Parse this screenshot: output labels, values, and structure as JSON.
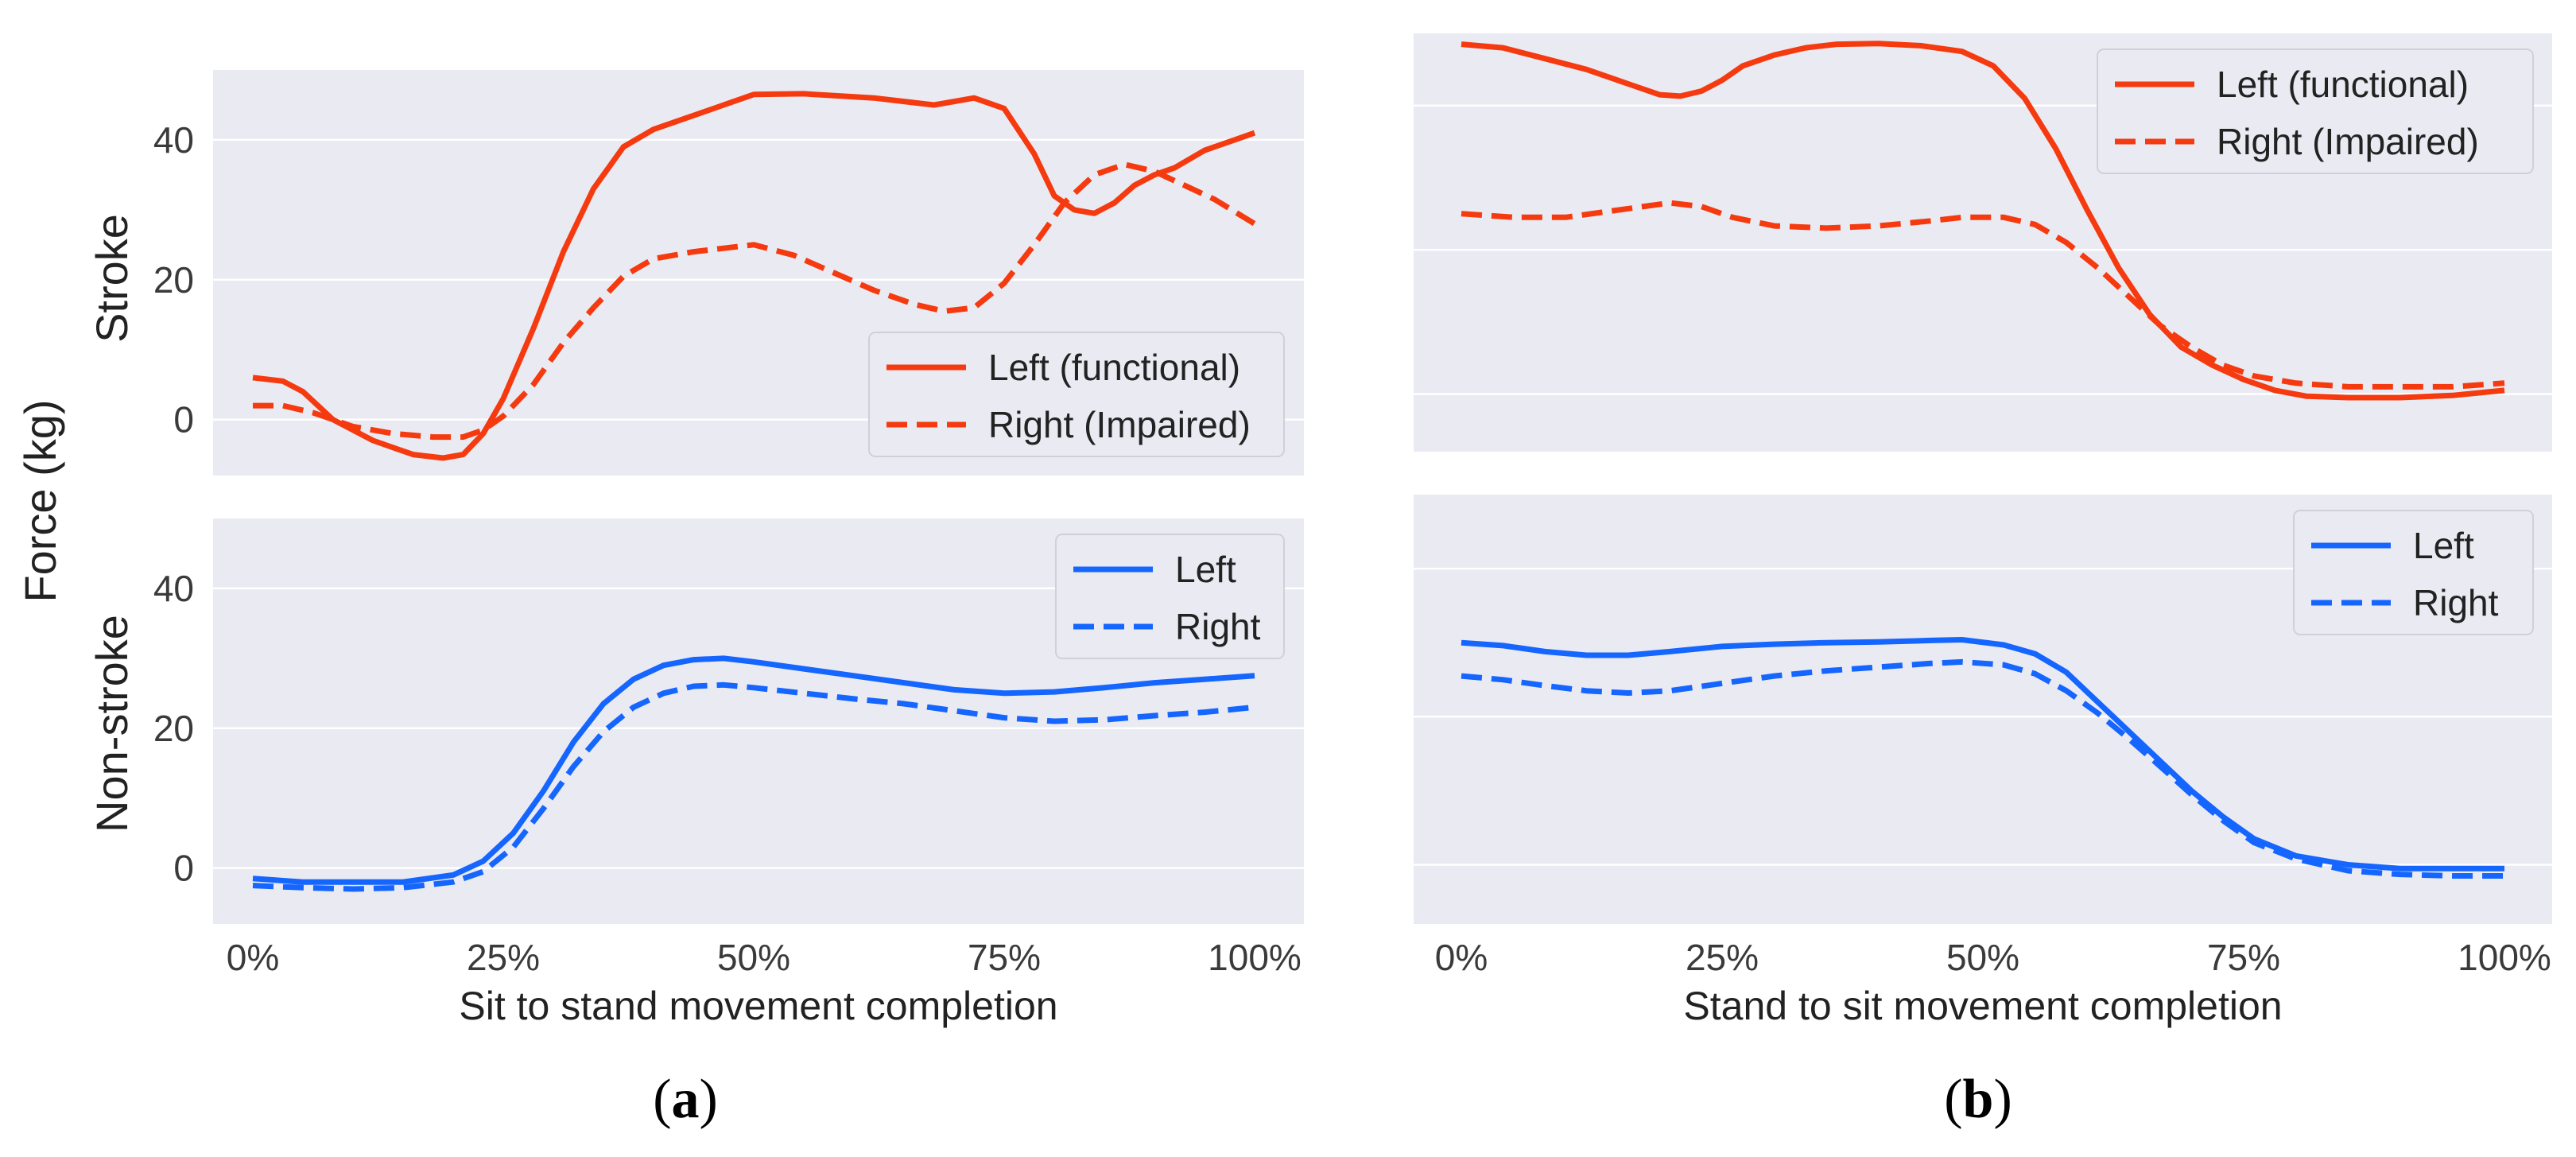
{
  "figure": {
    "ylabel": "Force (kg)",
    "row_labels": [
      "Stroke",
      "Non-stroke"
    ],
    "captions": [
      {
        "open": "(",
        "letter": "a",
        "close": ")"
      },
      {
        "open": "(",
        "letter": "b",
        "close": ")"
      }
    ]
  },
  "colors": {
    "stroke": "#f53a10",
    "non_stroke": "#1565ff",
    "panel_bg": "#eaeaf2",
    "grid": "#ffffff"
  },
  "chart_data": [
    {
      "type": "line",
      "panel": "a-top",
      "xlabel": "",
      "ylabel": "Stroke",
      "xlim": [
        0,
        100
      ],
      "ylim": [
        -8,
        50
      ],
      "yticks": [
        0,
        20,
        40
      ],
      "ytick_labels": [
        "0",
        "20",
        "40"
      ],
      "grid": true,
      "legend_position": "lower-right",
      "series": [
        {
          "name": "Left (functional)",
          "style": "solid",
          "color": "#f53a10",
          "x": [
            0,
            3,
            5,
            8,
            12,
            16,
            19,
            21,
            23,
            25,
            28,
            31,
            34,
            37,
            40,
            44,
            47,
            50,
            55,
            62,
            68,
            72,
            75,
            78,
            80,
            82,
            84,
            86,
            88,
            90,
            92,
            95,
            98,
            100
          ],
          "y": [
            6,
            5.5,
            4,
            0,
            -3,
            -5,
            -5.5,
            -5,
            -2,
            3,
            13,
            24,
            33,
            39,
            41.5,
            43.5,
            45,
            46.5,
            46.6,
            46,
            45,
            46,
            44.5,
            38,
            32,
            30,
            29.5,
            31,
            33.5,
            35,
            36,
            38.5,
            40,
            41
          ]
        },
        {
          "name": "Right (Impaired)",
          "style": "dashed",
          "color": "#f53a10",
          "x": [
            0,
            3,
            6,
            10,
            14,
            18,
            21,
            23,
            25,
            28,
            31,
            34,
            37,
            40,
            44,
            47,
            50,
            54,
            58,
            62,
            66,
            69,
            72,
            75,
            78,
            81,
            84,
            87,
            90,
            93,
            96,
            100
          ],
          "y": [
            2,
            2,
            1,
            -1,
            -2,
            -2.5,
            -2.5,
            -1.5,
            0.5,
            5,
            11,
            16,
            20.5,
            23,
            24,
            24.5,
            25,
            23.5,
            21,
            18.5,
            16.5,
            15.5,
            16,
            19.5,
            25,
            31,
            35,
            36.5,
            35.5,
            33.5,
            31.5,
            28
          ]
        }
      ]
    },
    {
      "type": "line",
      "panel": "a-bottom",
      "xlabel": "Sit to stand movement completion",
      "ylabel": "Non-stroke",
      "xlim": [
        0,
        100
      ],
      "ylim": [
        -8,
        50
      ],
      "yticks": [
        0,
        20,
        40
      ],
      "ytick_labels": [
        "0",
        "20",
        "40"
      ],
      "xticks": [
        0,
        25,
        50,
        75,
        100
      ],
      "xtick_labels": [
        "0%",
        "25%",
        "50%",
        "75%",
        "100%"
      ],
      "grid": true,
      "legend_position": "top-right",
      "series": [
        {
          "name": "Left",
          "style": "solid",
          "color": "#1565ff",
          "x": [
            0,
            5,
            10,
            15,
            20,
            23,
            26,
            29,
            32,
            35,
            38,
            41,
            44,
            47,
            50,
            55,
            60,
            65,
            70,
            75,
            80,
            85,
            90,
            95,
            100
          ],
          "y": [
            -1.5,
            -2,
            -2,
            -2,
            -1,
            1,
            5,
            11,
            18,
            23.5,
            27,
            29,
            29.8,
            30,
            29.5,
            28.5,
            27.5,
            26.5,
            25.5,
            25,
            25.2,
            25.8,
            26.5,
            27,
            27.5
          ]
        },
        {
          "name": "Right",
          "style": "dashed",
          "color": "#1565ff",
          "x": [
            0,
            5,
            10,
            15,
            20,
            23,
            26,
            29,
            32,
            35,
            38,
            41,
            44,
            47,
            50,
            55,
            60,
            65,
            70,
            75,
            80,
            85,
            90,
            95,
            100
          ],
          "y": [
            -2.5,
            -2.8,
            -3,
            -2.8,
            -2,
            -0.5,
            3,
            8.5,
            14.5,
            19.5,
            23,
            25,
            26,
            26.2,
            25.8,
            25,
            24.2,
            23.5,
            22.5,
            21.5,
            21,
            21.2,
            21.8,
            22.3,
            23
          ]
        }
      ]
    },
    {
      "type": "line",
      "panel": "b-top",
      "xlabel": "",
      "ylabel": "",
      "xlim": [
        0,
        100
      ],
      "ylim": [
        -8,
        50
      ],
      "yticks": [
        0,
        20,
        40
      ],
      "grid": true,
      "legend_position": "top-right",
      "series": [
        {
          "name": "Left (functional)",
          "style": "solid",
          "color": "#f53a10",
          "x": [
            0,
            4,
            8,
            12,
            16,
            19,
            21,
            23,
            25,
            27,
            30,
            33,
            36,
            40,
            44,
            48,
            51,
            54,
            57,
            60,
            63,
            66,
            69,
            72,
            75,
            78,
            81,
            85,
            90,
            95,
            100
          ],
          "y": [
            48.5,
            48,
            46.5,
            45,
            43,
            41.5,
            41.3,
            42,
            43.5,
            45.5,
            47,
            48,
            48.5,
            48.6,
            48.3,
            47.5,
            45.5,
            41,
            34,
            25.5,
            17.5,
            11,
            6.5,
            4,
            2,
            0.5,
            -0.3,
            -0.5,
            -0.5,
            -0.2,
            0.5
          ]
        },
        {
          "name": "Right (Impaired)",
          "style": "dashed",
          "color": "#f53a10",
          "x": [
            0,
            5,
            10,
            15,
            20,
            23,
            26,
            30,
            35,
            40,
            45,
            48,
            52,
            55,
            58,
            61,
            64,
            67,
            70,
            73,
            76,
            80,
            85,
            90,
            95,
            100
          ],
          "y": [
            25,
            24.5,
            24.5,
            25.5,
            26.5,
            26,
            24.5,
            23.3,
            23,
            23.3,
            24,
            24.5,
            24.5,
            23.5,
            21,
            17.5,
            13.5,
            9.5,
            6.5,
            4,
            2.5,
            1.5,
            1,
            1,
            1,
            1.5
          ]
        }
      ]
    },
    {
      "type": "line",
      "panel": "b-bottom",
      "xlabel": "Stand to sit movement completion",
      "ylabel": "",
      "xlim": [
        0,
        100
      ],
      "ylim": [
        -8,
        50
      ],
      "yticks": [
        0,
        20,
        40
      ],
      "xticks": [
        0,
        25,
        50,
        75,
        100
      ],
      "xtick_labels": [
        "0%",
        "25%",
        "50%",
        "75%",
        "100%"
      ],
      "grid": true,
      "legend_position": "top-right",
      "series": [
        {
          "name": "Left",
          "style": "solid",
          "color": "#1565ff",
          "x": [
            0,
            4,
            8,
            12,
            16,
            20,
            25,
            30,
            35,
            40,
            45,
            48,
            52,
            55,
            58,
            61,
            64,
            67,
            70,
            73,
            76,
            80,
            85,
            90,
            95,
            100
          ],
          "y": [
            30,
            29.6,
            28.8,
            28.3,
            28.3,
            28.8,
            29.5,
            29.8,
            30,
            30.1,
            30.3,
            30.4,
            29.7,
            28.5,
            26,
            22,
            18,
            14,
            10,
            6.5,
            3.5,
            1.2,
            0,
            -0.5,
            -0.5,
            -0.5
          ]
        },
        {
          "name": "Right",
          "style": "dashed",
          "color": "#1565ff",
          "x": [
            0,
            4,
            8,
            12,
            16,
            20,
            25,
            30,
            35,
            40,
            45,
            48,
            52,
            55,
            58,
            61,
            64,
            67,
            70,
            73,
            76,
            80,
            85,
            90,
            95,
            100
          ],
          "y": [
            25.5,
            25,
            24.2,
            23.5,
            23.2,
            23.5,
            24.5,
            25.5,
            26.2,
            26.7,
            27.2,
            27.4,
            27,
            25.8,
            23.5,
            20.5,
            17,
            13.3,
            9.5,
            6,
            3,
            0.8,
            -0.8,
            -1.3,
            -1.5,
            -1.5
          ]
        }
      ]
    }
  ]
}
